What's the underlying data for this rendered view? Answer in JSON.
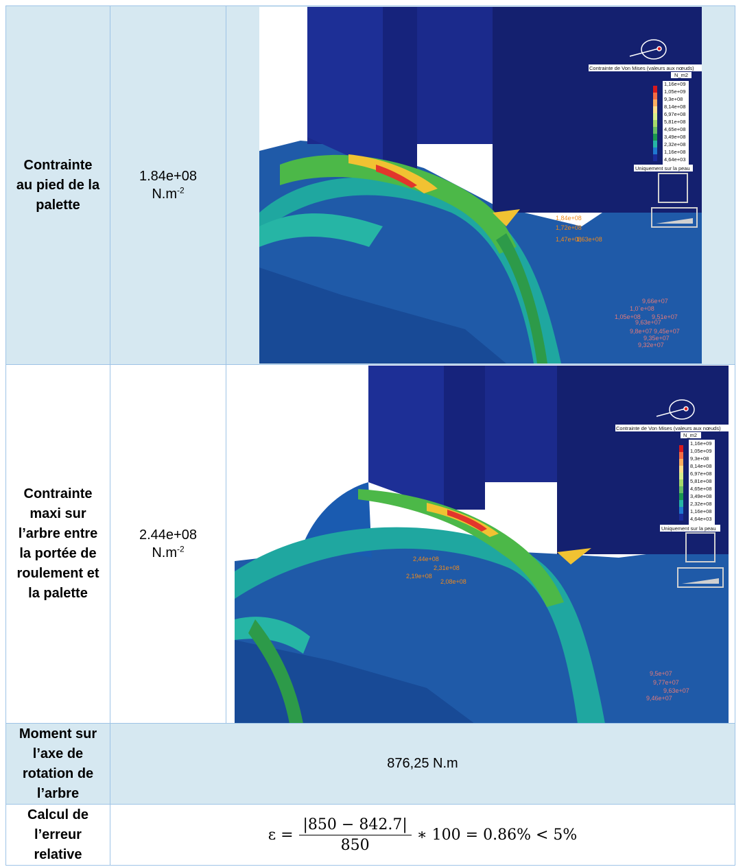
{
  "table": {
    "rows": [
      {
        "label_lines": [
          "Contrainte",
          "au pied de la",
          "palette"
        ],
        "value": "1.84e+08",
        "unit_base": "N.m",
        "unit_exp": "-2"
      },
      {
        "label_lines": [
          "Contrainte",
          "maxi sur",
          "l’arbre entre",
          "la portée de",
          "roulement et",
          "la palette"
        ],
        "value": "2.44e+08",
        "unit_base": "N.m",
        "unit_exp": "-2"
      },
      {
        "label_lines": [
          "Moment sur",
          "l’axe de",
          "rotation de",
          "l’arbre"
        ],
        "value": "876,25 N.m"
      },
      {
        "label_lines": [
          "Calcul de",
          "l’erreur",
          "relative"
        ],
        "formula": {
          "lhs": "ε =",
          "numerator": "|850 − 842.7|",
          "denominator": "850",
          "rhs": "∗ 100 = 0.86% < 5%"
        }
      }
    ]
  },
  "fea": {
    "legend_title": "Contrainte de Von Mises (valeurs aux nœuds)",
    "legend_unit": "N_m2",
    "legend_values": [
      "1,16e+09",
      "1,05e+09",
      "9,3e+08",
      "8,14e+08",
      "6,97e+08",
      "5,81e+08",
      "4,65e+08",
      "3,49e+08",
      "2,32e+08",
      "1,16e+08",
      "4,64e+03"
    ],
    "legend_colors": [
      "#d7191c",
      "#f46d43",
      "#fdae61",
      "#fee08b",
      "#d9ef8b",
      "#a6d96a",
      "#66bd63",
      "#1a9850",
      "#26b5a5",
      "#1f78d0",
      "#1a2b9b"
    ],
    "legend_footer": "Uniquement sur la peau",
    "image1_labels": [
      "1,84e+08",
      "1,72e+08",
      "1,47e+08",
      "1,63e+08"
    ],
    "image1_cluster": [
      "9,66e+07",
      "1,0`e+08",
      "1,05e+08",
      "9,51e+07",
      "9,63e+07",
      "9,8e+07",
      "9,45e+07",
      "9,35e+07",
      "9,32e+07"
    ],
    "image2_labels": [
      "2,44e+08",
      "2,31e+08",
      "2,19e+08",
      "2,08e+08"
    ],
    "image2_cluster": [
      "9,5e+07",
      "9,77e+07",
      "9,63e+07",
      "9,46e+07"
    ]
  }
}
